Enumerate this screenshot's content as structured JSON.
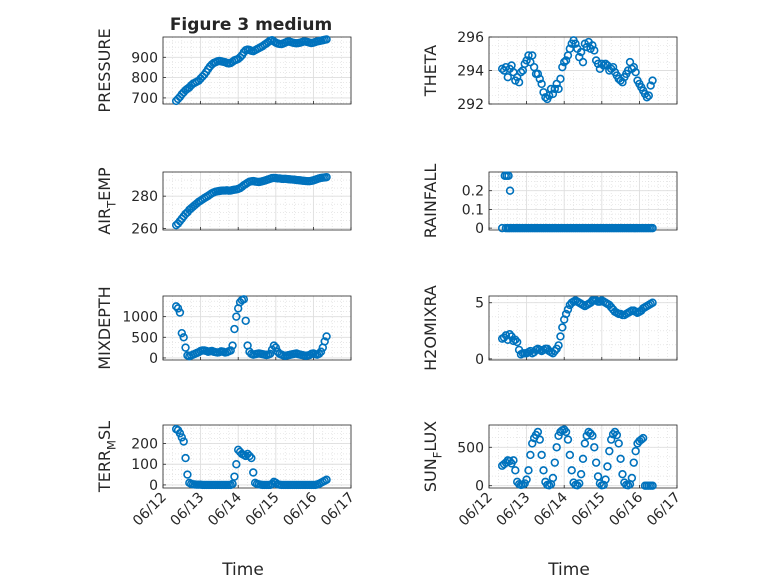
{
  "figure": {
    "title": "Figure 3 medium",
    "x_tick_labels": [
      "06/12",
      "06/13",
      "06/14",
      "06/15",
      "06/16",
      "06/17"
    ],
    "x_label": "Time",
    "marker_color": "#0072BD",
    "grid": true,
    "minor_grid": true
  },
  "chart_data": [
    {
      "type": "scatter",
      "ylabel": "PRESSURE",
      "xlim": [
        0,
        5
      ],
      "ylim": [
        670,
        1000
      ],
      "yticks": [
        700,
        800,
        900
      ],
      "x": [
        0.35,
        0.4,
        0.45,
        0.5,
        0.55,
        0.6,
        0.65,
        0.7,
        0.75,
        0.8,
        0.85,
        0.9,
        0.95,
        1.0,
        1.05,
        1.1,
        1.15,
        1.2,
        1.25,
        1.3,
        1.35,
        1.4,
        1.45,
        1.5,
        1.55,
        1.6,
        1.65,
        1.7,
        1.75,
        1.8,
        1.85,
        1.9,
        1.95,
        2.0,
        2.05,
        2.1,
        2.15,
        2.2,
        2.25,
        2.3,
        2.35,
        2.4,
        2.45,
        2.5,
        2.55,
        2.6,
        2.65,
        2.7,
        2.75,
        2.8,
        2.85,
        2.9,
        2.95,
        3.0,
        3.05,
        3.1,
        3.15,
        3.2,
        3.25,
        3.3,
        3.35,
        3.4,
        3.45,
        3.5,
        3.55,
        3.6,
        3.65,
        3.7,
        3.75,
        3.8,
        3.85,
        3.9,
        3.95,
        4.0,
        4.05,
        4.1,
        4.15,
        4.2,
        4.25,
        4.3,
        4.35
      ],
      "y": [
        685,
        695,
        705,
        718,
        728,
        738,
        745,
        752,
        762,
        770,
        775,
        780,
        785,
        795,
        805,
        815,
        828,
        842,
        855,
        865,
        872,
        876,
        880,
        882,
        880,
        878,
        876,
        872,
        870,
        872,
        878,
        885,
        888,
        892,
        900,
        910,
        925,
        935,
        938,
        936,
        932,
        930,
        935,
        940,
        945,
        950,
        955,
        962,
        968,
        975,
        982,
        984,
        978,
        972,
        968,
        966,
        965,
        968,
        972,
        976,
        978,
        975,
        972,
        970,
        969,
        970,
        972,
        975,
        978,
        977,
        975,
        972,
        970,
        972,
        975,
        978,
        980,
        982,
        984,
        986,
        988
      ]
    },
    {
      "type": "scatter",
      "ylabel": "THETA",
      "xlim": [
        0,
        5
      ],
      "ylim": [
        292,
        296
      ],
      "yticks": [
        292,
        294,
        296
      ],
      "x": [
        0.35,
        0.4,
        0.45,
        0.5,
        0.55,
        0.6,
        0.65,
        0.7,
        0.75,
        0.8,
        0.85,
        0.9,
        0.95,
        1.0,
        1.05,
        1.1,
        1.15,
        1.2,
        1.25,
        1.3,
        1.35,
        1.4,
        1.45,
        1.5,
        1.55,
        1.6,
        1.65,
        1.7,
        1.75,
        1.8,
        1.85,
        1.9,
        1.95,
        2.0,
        2.05,
        2.1,
        2.15,
        2.2,
        2.25,
        2.3,
        2.35,
        2.4,
        2.45,
        2.5,
        2.55,
        2.6,
        2.65,
        2.7,
        2.75,
        2.8,
        2.85,
        2.9,
        2.95,
        3.0,
        3.05,
        3.1,
        3.15,
        3.2,
        3.25,
        3.3,
        3.35,
        3.4,
        3.45,
        3.5,
        3.55,
        3.6,
        3.65,
        3.7,
        3.75,
        3.8,
        3.85,
        3.9,
        3.95,
        4.0,
        4.05,
        4.1,
        4.15,
        4.2,
        4.25,
        4.3,
        4.35
      ],
      "y": [
        294.1,
        294.0,
        294.2,
        293.6,
        294.1,
        294.3,
        293.9,
        293.4,
        293.6,
        293.3,
        293.9,
        294.0,
        294.4,
        294.6,
        294.9,
        294.5,
        294.9,
        294.2,
        293.8,
        293.8,
        293.5,
        293.2,
        292.7,
        292.4,
        292.3,
        292.5,
        292.9,
        292.6,
        292.9,
        293.2,
        292.9,
        293.5,
        294.2,
        294.5,
        294.6,
        294.9,
        295.3,
        295.6,
        295.8,
        295.6,
        295.3,
        294.8,
        295.1,
        294.5,
        295.6,
        295.4,
        295.7,
        295.3,
        295.5,
        295.2,
        294.6,
        294.4,
        294.1,
        294.4,
        294.3,
        294.4,
        294.3,
        294.0,
        294.1,
        294.2,
        293.9,
        293.7,
        293.5,
        293.4,
        293.3,
        293.6,
        293.8,
        294.0,
        294.5,
        294.1,
        294.2,
        293.9,
        293.4,
        293.2,
        293.0,
        292.8,
        292.6,
        292.4,
        292.5,
        293.1,
        293.4
      ]
    },
    {
      "type": "scatter",
      "ylabel": "AIR_TEMP",
      "xlim": [
        0,
        5
      ],
      "ylim": [
        259,
        295
      ],
      "yticks": [
        260,
        280
      ],
      "x": [
        0.35,
        0.4,
        0.45,
        0.5,
        0.55,
        0.6,
        0.65,
        0.7,
        0.75,
        0.8,
        0.85,
        0.9,
        0.95,
        1.0,
        1.05,
        1.1,
        1.15,
        1.2,
        1.25,
        1.3,
        1.35,
        1.4,
        1.45,
        1.5,
        1.55,
        1.6,
        1.65,
        1.7,
        1.75,
        1.8,
        1.85,
        1.9,
        1.95,
        2.0,
        2.05,
        2.1,
        2.15,
        2.2,
        2.25,
        2.3,
        2.35,
        2.4,
        2.45,
        2.5,
        2.55,
        2.6,
        2.65,
        2.7,
        2.75,
        2.8,
        2.85,
        2.9,
        2.95,
        3.0,
        3.05,
        3.1,
        3.15,
        3.2,
        3.25,
        3.3,
        3.35,
        3.4,
        3.45,
        3.5,
        3.55,
        3.6,
        3.65,
        3.7,
        3.75,
        3.8,
        3.85,
        3.9,
        3.95,
        4.0,
        4.05,
        4.1,
        4.15,
        4.2,
        4.25,
        4.3,
        4.35
      ],
      "y": [
        262,
        263,
        264.5,
        266,
        267.5,
        269,
        270,
        271.5,
        272.5,
        273.5,
        274.5,
        275.5,
        276.5,
        277.2,
        278,
        278.8,
        279.5,
        280.2,
        281,
        281.8,
        282.3,
        282.8,
        283,
        283.2,
        283.4,
        283.5,
        283.5,
        283.6,
        283.4,
        283.5,
        283.8,
        284,
        284.2,
        284.5,
        285,
        285.8,
        286.8,
        287.5,
        288.3,
        289,
        289.2,
        289.4,
        289.1,
        288.9,
        288.8,
        289,
        289.3,
        289.6,
        290,
        290.4,
        290.8,
        291.2,
        291.3,
        291.2,
        291,
        291,
        290.8,
        290.7,
        290.8,
        290.6,
        290.5,
        290.4,
        290.3,
        290.2,
        290,
        289.9,
        289.8,
        289.6,
        289.5,
        289.4,
        289.3,
        289.3,
        289.5,
        289.8,
        290.2,
        290.6,
        291,
        291.3,
        291.5,
        291.6,
        291.8
      ]
    },
    {
      "type": "scatter",
      "ylabel": "RAINFALL",
      "xlim": [
        0,
        5
      ],
      "ylim": [
        -0.01,
        0.3
      ],
      "yticks": [
        0,
        0.1,
        0.2
      ],
      "x": [
        0.35,
        0.45,
        0.5,
        0.55,
        0.6,
        0.65,
        0.7,
        0.75,
        0.8,
        0.85,
        0.9,
        0.95,
        1.0,
        1.05,
        1.1,
        1.15,
        1.2,
        1.25,
        1.3,
        1.35,
        1.4,
        1.45,
        1.5,
        1.55,
        1.6,
        1.65,
        1.7,
        1.75,
        1.8,
        1.85,
        1.9,
        1.95,
        2.0,
        2.05,
        2.1,
        2.15,
        2.2,
        2.25,
        2.3,
        2.35,
        2.4,
        2.45,
        2.5,
        2.55,
        2.6,
        2.65,
        2.7,
        2.75,
        2.8,
        2.85,
        2.9,
        2.95,
        3.0,
        3.05,
        3.1,
        3.15,
        3.2,
        3.25,
        3.3,
        3.35,
        3.4,
        3.45,
        3.5,
        3.55,
        3.6,
        3.65,
        3.7,
        3.75,
        3.8,
        3.85,
        3.9,
        3.95,
        4.0,
        4.05,
        4.1,
        4.15,
        4.2,
        4.25,
        4.3,
        4.35,
        0.42,
        0.47,
        0.52,
        0.56
      ],
      "y": [
        0,
        0,
        0,
        0,
        0,
        0,
        0,
        0,
        0,
        0,
        0,
        0,
        0,
        0,
        0,
        0,
        0,
        0,
        0,
        0,
        0,
        0,
        0,
        0,
        0,
        0,
        0,
        0,
        0,
        0,
        0,
        0,
        0,
        0,
        0,
        0,
        0,
        0,
        0,
        0,
        0,
        0,
        0,
        0,
        0,
        0,
        0,
        0,
        0,
        0,
        0,
        0,
        0,
        0,
        0,
        0,
        0,
        0,
        0,
        0,
        0,
        0,
        0,
        0,
        0,
        0,
        0,
        0,
        0,
        0,
        0,
        0,
        0,
        0,
        0,
        0,
        0,
        0,
        0,
        0,
        0.28,
        0.28,
        0.28,
        0.2
      ]
    },
    {
      "type": "scatter",
      "ylabel": "MIXDEPTH",
      "xlim": [
        0,
        5
      ],
      "ylim": [
        -50,
        1500
      ],
      "yticks": [
        0,
        500,
        1000
      ],
      "x": [
        0.35,
        0.4,
        0.45,
        0.5,
        0.55,
        0.6,
        0.65,
        0.7,
        0.75,
        0.8,
        0.85,
        0.9,
        0.95,
        1.0,
        1.05,
        1.1,
        1.15,
        1.2,
        1.25,
        1.3,
        1.35,
        1.4,
        1.45,
        1.5,
        1.55,
        1.6,
        1.65,
        1.7,
        1.75,
        1.8,
        1.85,
        1.9,
        1.95,
        2.0,
        2.05,
        2.1,
        2.15,
        2.2,
        2.25,
        2.3,
        2.35,
        2.4,
        2.45,
        2.5,
        2.55,
        2.6,
        2.65,
        2.7,
        2.75,
        2.8,
        2.85,
        2.9,
        2.95,
        3.0,
        3.05,
        3.1,
        3.15,
        3.2,
        3.25,
        3.3,
        3.35,
        3.4,
        3.45,
        3.5,
        3.55,
        3.6,
        3.65,
        3.7,
        3.75,
        3.8,
        3.85,
        3.9,
        3.95,
        4.0,
        4.05,
        4.1,
        4.15,
        4.2,
        4.25,
        4.3,
        4.35
      ],
      "y": [
        1250,
        1200,
        1100,
        600,
        500,
        250,
        60,
        40,
        60,
        80,
        100,
        120,
        140,
        170,
        180,
        180,
        170,
        150,
        160,
        170,
        150,
        140,
        130,
        140,
        160,
        150,
        130,
        140,
        160,
        180,
        300,
        700,
        1000,
        1200,
        1350,
        1400,
        1420,
        900,
        300,
        150,
        100,
        80,
        90,
        100,
        110,
        100,
        90,
        80,
        70,
        80,
        100,
        200,
        300,
        250,
        150,
        100,
        80,
        60,
        50,
        60,
        70,
        80,
        90,
        100,
        110,
        90,
        80,
        70,
        60,
        50,
        60,
        70,
        100,
        110,
        90,
        80,
        100,
        150,
        250,
        400,
        520
      ]
    },
    {
      "type": "scatter",
      "ylabel": "H2OMIXRA",
      "xlim": [
        0,
        5
      ],
      "ylim": [
        -0.1,
        5.6
      ],
      "yticks": [
        0,
        5
      ],
      "x": [
        0.35,
        0.4,
        0.45,
        0.5,
        0.55,
        0.6,
        0.65,
        0.7,
        0.75,
        0.8,
        0.85,
        0.9,
        0.95,
        1.0,
        1.05,
        1.1,
        1.15,
        1.2,
        1.25,
        1.3,
        1.35,
        1.4,
        1.45,
        1.5,
        1.55,
        1.6,
        1.65,
        1.7,
        1.75,
        1.8,
        1.85,
        1.9,
        1.95,
        2.0,
        2.05,
        2.1,
        2.15,
        2.2,
        2.25,
        2.3,
        2.35,
        2.4,
        2.45,
        2.5,
        2.55,
        2.6,
        2.65,
        2.7,
        2.75,
        2.8,
        2.85,
        2.9,
        2.95,
        3.0,
        3.05,
        3.1,
        3.15,
        3.2,
        3.25,
        3.3,
        3.35,
        3.4,
        3.45,
        3.5,
        3.55,
        3.6,
        3.65,
        3.7,
        3.75,
        3.8,
        3.85,
        3.9,
        3.95,
        4.0,
        4.05,
        4.1,
        4.15,
        4.2,
        4.25,
        4.3,
        4.35
      ],
      "y": [
        1.8,
        1.9,
        2.1,
        1.7,
        2.2,
        2.0,
        1.6,
        1.7,
        1.5,
        0.8,
        0.4,
        0.5,
        0.5,
        0.5,
        0.6,
        0.7,
        0.5,
        0.6,
        0.8,
        0.9,
        0.8,
        0.7,
        0.8,
        0.9,
        0.9,
        0.7,
        0.6,
        0.5,
        0.7,
        0.9,
        1.2,
        2.0,
        2.8,
        3.5,
        4.0,
        4.4,
        4.8,
        5.0,
        5.1,
        5.2,
        5.1,
        5.0,
        4.9,
        4.8,
        4.7,
        4.8,
        4.9,
        5.0,
        5.2,
        5.2,
        5.2,
        5.1,
        5.1,
        5.2,
        5.1,
        5.0,
        4.9,
        4.8,
        4.6,
        4.4,
        4.2,
        4.1,
        4.0,
        4.0,
        3.9,
        3.9,
        4.0,
        4.1,
        4.2,
        4.3,
        4.3,
        4.2,
        4.1,
        4.2,
        4.3,
        4.5,
        4.6,
        4.7,
        4.8,
        4.9,
        5.0
      ]
    },
    {
      "type": "scatter",
      "ylabel": "TERR_MSL",
      "xlim": [
        0,
        5
      ],
      "ylim": [
        -15,
        290
      ],
      "yticks": [
        0,
        100,
        200
      ],
      "x": [
        0.35,
        0.4,
        0.45,
        0.5,
        0.55,
        0.6,
        0.65,
        0.7,
        0.75,
        0.8,
        0.85,
        0.9,
        0.95,
        1.0,
        1.05,
        1.1,
        1.15,
        1.2,
        1.25,
        1.3,
        1.35,
        1.4,
        1.45,
        1.5,
        1.55,
        1.6,
        1.65,
        1.7,
        1.75,
        1.8,
        1.85,
        1.9,
        1.95,
        2.0,
        2.05,
        2.1,
        2.15,
        2.2,
        2.25,
        2.3,
        2.35,
        2.4,
        2.45,
        2.5,
        2.55,
        2.6,
        2.65,
        2.7,
        2.75,
        2.8,
        2.85,
        2.9,
        2.95,
        3.0,
        3.05,
        3.1,
        3.15,
        3.2,
        3.25,
        3.3,
        3.35,
        3.4,
        3.45,
        3.5,
        3.55,
        3.6,
        3.65,
        3.7,
        3.75,
        3.8,
        3.85,
        3.9,
        3.95,
        4.0,
        4.05,
        4.1,
        4.15,
        4.2,
        4.25,
        4.3,
        4.35
      ],
      "y": [
        270,
        265,
        250,
        230,
        210,
        130,
        50,
        10,
        5,
        3,
        2,
        1,
        1,
        1,
        0,
        0,
        0,
        0,
        0,
        0,
        0,
        0,
        0,
        0,
        0,
        0,
        0,
        0,
        0,
        0,
        5,
        40,
        100,
        170,
        160,
        150,
        145,
        140,
        150,
        140,
        130,
        60,
        10,
        5,
        3,
        1,
        0,
        0,
        0,
        0,
        0,
        5,
        15,
        10,
        3,
        1,
        0,
        0,
        0,
        0,
        0,
        0,
        0,
        0,
        0,
        0,
        0,
        0,
        0,
        0,
        0,
        0,
        0,
        0,
        0,
        2,
        5,
        10,
        15,
        20,
        25
      ]
    },
    {
      "type": "scatter",
      "ylabel": "SUN_FLUX",
      "xlim": [
        0,
        5
      ],
      "ylim": [
        -30,
        790
      ],
      "yticks": [
        0,
        500
      ],
      "x": [
        0.35,
        0.4,
        0.45,
        0.5,
        0.55,
        0.6,
        0.65,
        0.7,
        0.75,
        0.8,
        0.85,
        0.9,
        0.95,
        1.0,
        1.05,
        1.1,
        1.15,
        1.2,
        1.25,
        1.3,
        1.35,
        1.4,
        1.45,
        1.5,
        1.55,
        1.6,
        1.65,
        1.7,
        1.75,
        1.8,
        1.85,
        1.9,
        1.95,
        2.0,
        2.05,
        2.1,
        2.15,
        2.2,
        2.25,
        2.3,
        2.35,
        2.4,
        2.45,
        2.5,
        2.55,
        2.6,
        2.65,
        2.7,
        2.75,
        2.8,
        2.85,
        2.9,
        2.95,
        3.0,
        3.05,
        3.1,
        3.15,
        3.2,
        3.25,
        3.3,
        3.35,
        3.4,
        3.45,
        3.5,
        3.55,
        3.6,
        3.65,
        3.7,
        3.75,
        3.8,
        3.85,
        3.9,
        3.95,
        4.0,
        4.05,
        4.1,
        4.15,
        4.2,
        4.25,
        4.3,
        4.35
      ],
      "y": [
        260,
        280,
        300,
        330,
        320,
        290,
        330,
        200,
        50,
        20,
        10,
        15,
        30,
        80,
        200,
        400,
        550,
        620,
        660,
        700,
        600,
        400,
        200,
        50,
        10,
        5,
        20,
        100,
        300,
        500,
        650,
        700,
        720,
        730,
        700,
        600,
        400,
        200,
        40,
        10,
        5,
        30,
        150,
        350,
        550,
        650,
        700,
        680,
        650,
        500,
        300,
        120,
        30,
        5,
        10,
        80,
        250,
        450,
        600,
        670,
        700,
        660,
        550,
        350,
        150,
        40,
        10,
        5,
        20,
        100,
        300,
        450,
        550,
        580,
        600,
        620,
        0,
        0,
        0,
        0,
        0
      ]
    }
  ]
}
